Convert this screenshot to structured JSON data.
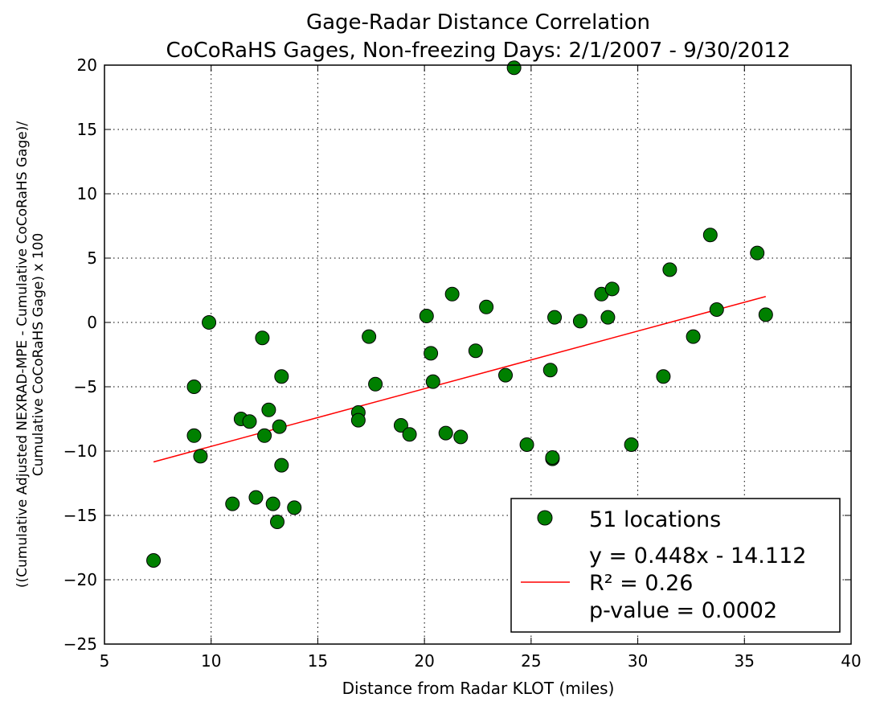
{
  "chart_data": {
    "type": "scatter",
    "title": "Gage-Radar Distance Correlation",
    "subtitle": "CoCoRaHS Gages, Non-freezing Days: 2/1/2007 - 9/30/2012",
    "xlabel": "Distance from Radar KLOT (miles)",
    "ylabel_lines": [
      "((Cumulative Adjusted NEXRAD-MPE - Cumulative CoCoRaHS Gage)/",
      "Cumulative CoCoRaHS Gage) x 100"
    ],
    "xlim": [
      5,
      40
    ],
    "ylim": [
      -25,
      20
    ],
    "xticks": [
      "5",
      "10",
      "15",
      "20",
      "25",
      "30",
      "35",
      "40"
    ],
    "yticks": [
      "20",
      "15",
      "10",
      "5",
      "0",
      "−5",
      "−10",
      "−15",
      "−20",
      "−25"
    ],
    "xtick_values": [
      5,
      10,
      15,
      20,
      25,
      30,
      35,
      40
    ],
    "ytick_values": [
      20,
      15,
      10,
      5,
      0,
      -5,
      -10,
      -15,
      -20,
      -25
    ],
    "grid": true,
    "legend_position": "bottom-right",
    "series": [
      {
        "name": "51 locations",
        "kind": "points",
        "color": "#008000",
        "points": [
          [
            7.3,
            -18.5
          ],
          [
            9.2,
            -5.0
          ],
          [
            9.2,
            -8.8
          ],
          [
            9.5,
            -10.4
          ],
          [
            9.9,
            0.0
          ],
          [
            11.0,
            -14.1
          ],
          [
            11.4,
            -7.5
          ],
          [
            11.8,
            -7.7
          ],
          [
            12.1,
            -13.6
          ],
          [
            12.4,
            -1.2
          ],
          [
            12.5,
            -8.8
          ],
          [
            12.7,
            -6.8
          ],
          [
            12.9,
            -14.1
          ],
          [
            13.1,
            -15.5
          ],
          [
            13.2,
            -8.1
          ],
          [
            13.3,
            -4.2
          ],
          [
            13.3,
            -11.1
          ],
          [
            13.9,
            -14.4
          ],
          [
            16.9,
            -7.0
          ],
          [
            16.9,
            -7.6
          ],
          [
            17.4,
            -1.1
          ],
          [
            17.7,
            -4.8
          ],
          [
            18.9,
            -8.0
          ],
          [
            19.3,
            -8.7
          ],
          [
            20.1,
            0.5
          ],
          [
            20.3,
            -2.4
          ],
          [
            20.4,
            -4.6
          ],
          [
            21.0,
            -8.6
          ],
          [
            21.3,
            2.2
          ],
          [
            21.7,
            -8.9
          ],
          [
            22.4,
            -2.2
          ],
          [
            22.9,
            1.2
          ],
          [
            23.8,
            -4.1
          ],
          [
            24.2,
            19.8
          ],
          [
            24.8,
            -9.5
          ],
          [
            25.9,
            -3.7
          ],
          [
            26.0,
            -10.6
          ],
          [
            26.1,
            0.4
          ],
          [
            27.3,
            0.1
          ],
          [
            28.3,
            2.2
          ],
          [
            28.6,
            0.4
          ],
          [
            28.8,
            2.6
          ],
          [
            29.7,
            -9.5
          ],
          [
            31.2,
            -4.2
          ],
          [
            31.5,
            4.1
          ],
          [
            32.6,
            -1.1
          ],
          [
            33.4,
            6.8
          ],
          [
            33.7,
            1.0
          ],
          [
            35.6,
            5.4
          ],
          [
            36.0,
            0.6
          ],
          [
            26.0,
            -10.5
          ]
        ]
      },
      {
        "name": "",
        "kind": "fit-line",
        "color": "#ff0000",
        "slope": 0.448,
        "intercept": -14.112,
        "x_range": [
          7.3,
          36.0
        ]
      }
    ],
    "legend": {
      "entries": [
        {
          "label_lines": [
            "51 locations"
          ],
          "marker": "circle",
          "color": "#008000"
        },
        {
          "label_lines": [
            "y = 0.448x - 14.112",
            "R² = 0.26",
            "p-value = 0.0002"
          ],
          "marker": "line",
          "color": "#ff0000"
        }
      ]
    }
  }
}
